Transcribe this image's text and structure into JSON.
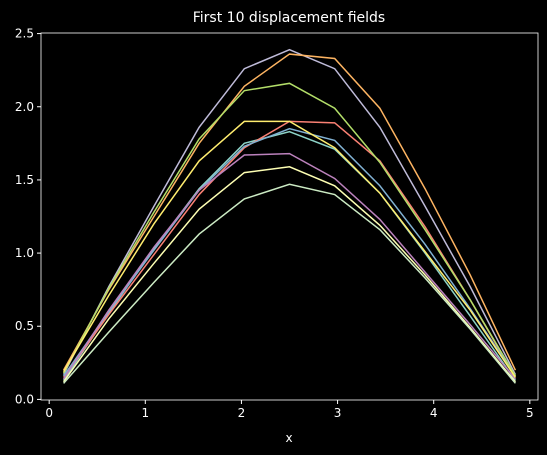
{
  "chart_data": {
    "type": "line",
    "title": "First 10 displacement fields",
    "x_label": "x",
    "x": [
      0.15,
      0.62,
      1.09,
      1.56,
      2.03,
      2.5,
      2.97,
      3.44,
      3.91,
      4.38,
      4.85
    ],
    "series": [
      {
        "color": "#8dd3c7",
        "values": [
          0.13,
          0.59,
          1.03,
          1.44,
          1.75,
          1.83,
          1.71,
          1.41,
          1.0,
          0.57,
          0.13
        ]
      },
      {
        "color": "#feffb3",
        "values": [
          0.12,
          0.55,
          0.93,
          1.3,
          1.55,
          1.59,
          1.46,
          1.19,
          0.85,
          0.49,
          0.12
        ]
      },
      {
        "color": "#bfbbd9",
        "values": [
          0.17,
          0.77,
          1.32,
          1.86,
          2.26,
          2.39,
          2.26,
          1.86,
          1.32,
          0.77,
          0.17
        ]
      },
      {
        "color": "#fa8174",
        "values": [
          0.15,
          0.58,
          0.99,
          1.4,
          1.72,
          1.9,
          1.89,
          1.63,
          1.18,
          0.68,
          0.15
        ]
      },
      {
        "color": "#81b1d2",
        "values": [
          0.16,
          0.6,
          1.02,
          1.43,
          1.73,
          1.85,
          1.77,
          1.46,
          1.06,
          0.62,
          0.16
        ]
      },
      {
        "color": "#fdb462",
        "values": [
          0.2,
          0.75,
          1.25,
          1.75,
          2.14,
          2.36,
          2.33,
          1.99,
          1.44,
          0.85,
          0.2
        ]
      },
      {
        "color": "#b3de69",
        "values": [
          0.18,
          0.76,
          1.28,
          1.78,
          2.11,
          2.16,
          1.99,
          1.62,
          1.16,
          0.68,
          0.16
        ]
      },
      {
        "color": "#bc82bd",
        "values": [
          0.14,
          0.61,
          1.04,
          1.43,
          1.67,
          1.68,
          1.51,
          1.23,
          0.87,
          0.51,
          0.14
        ]
      },
      {
        "color": "#ccebc4",
        "values": [
          0.11,
          0.46,
          0.8,
          1.13,
          1.37,
          1.47,
          1.4,
          1.16,
          0.83,
          0.48,
          0.11
        ]
      },
      {
        "color": "#ffed6f",
        "values": [
          0.19,
          0.71,
          1.2,
          1.63,
          1.9,
          1.9,
          1.72,
          1.41,
          1.01,
          0.61,
          0.15
        ]
      }
    ],
    "xlim": [
      -0.085,
      5.085
    ],
    "xticks": [
      0,
      1,
      2,
      3,
      4,
      5
    ],
    "ylim": [
      -0.004,
      2.504
    ],
    "yticks": [
      {
        "value": 0,
        "label": "0.0"
      },
      0.5,
      {
        "value": 1,
        "label": "1.0"
      },
      1.5,
      {
        "value": 2,
        "label": "2.0"
      },
      2.5
    ],
    "grid": false
  }
}
